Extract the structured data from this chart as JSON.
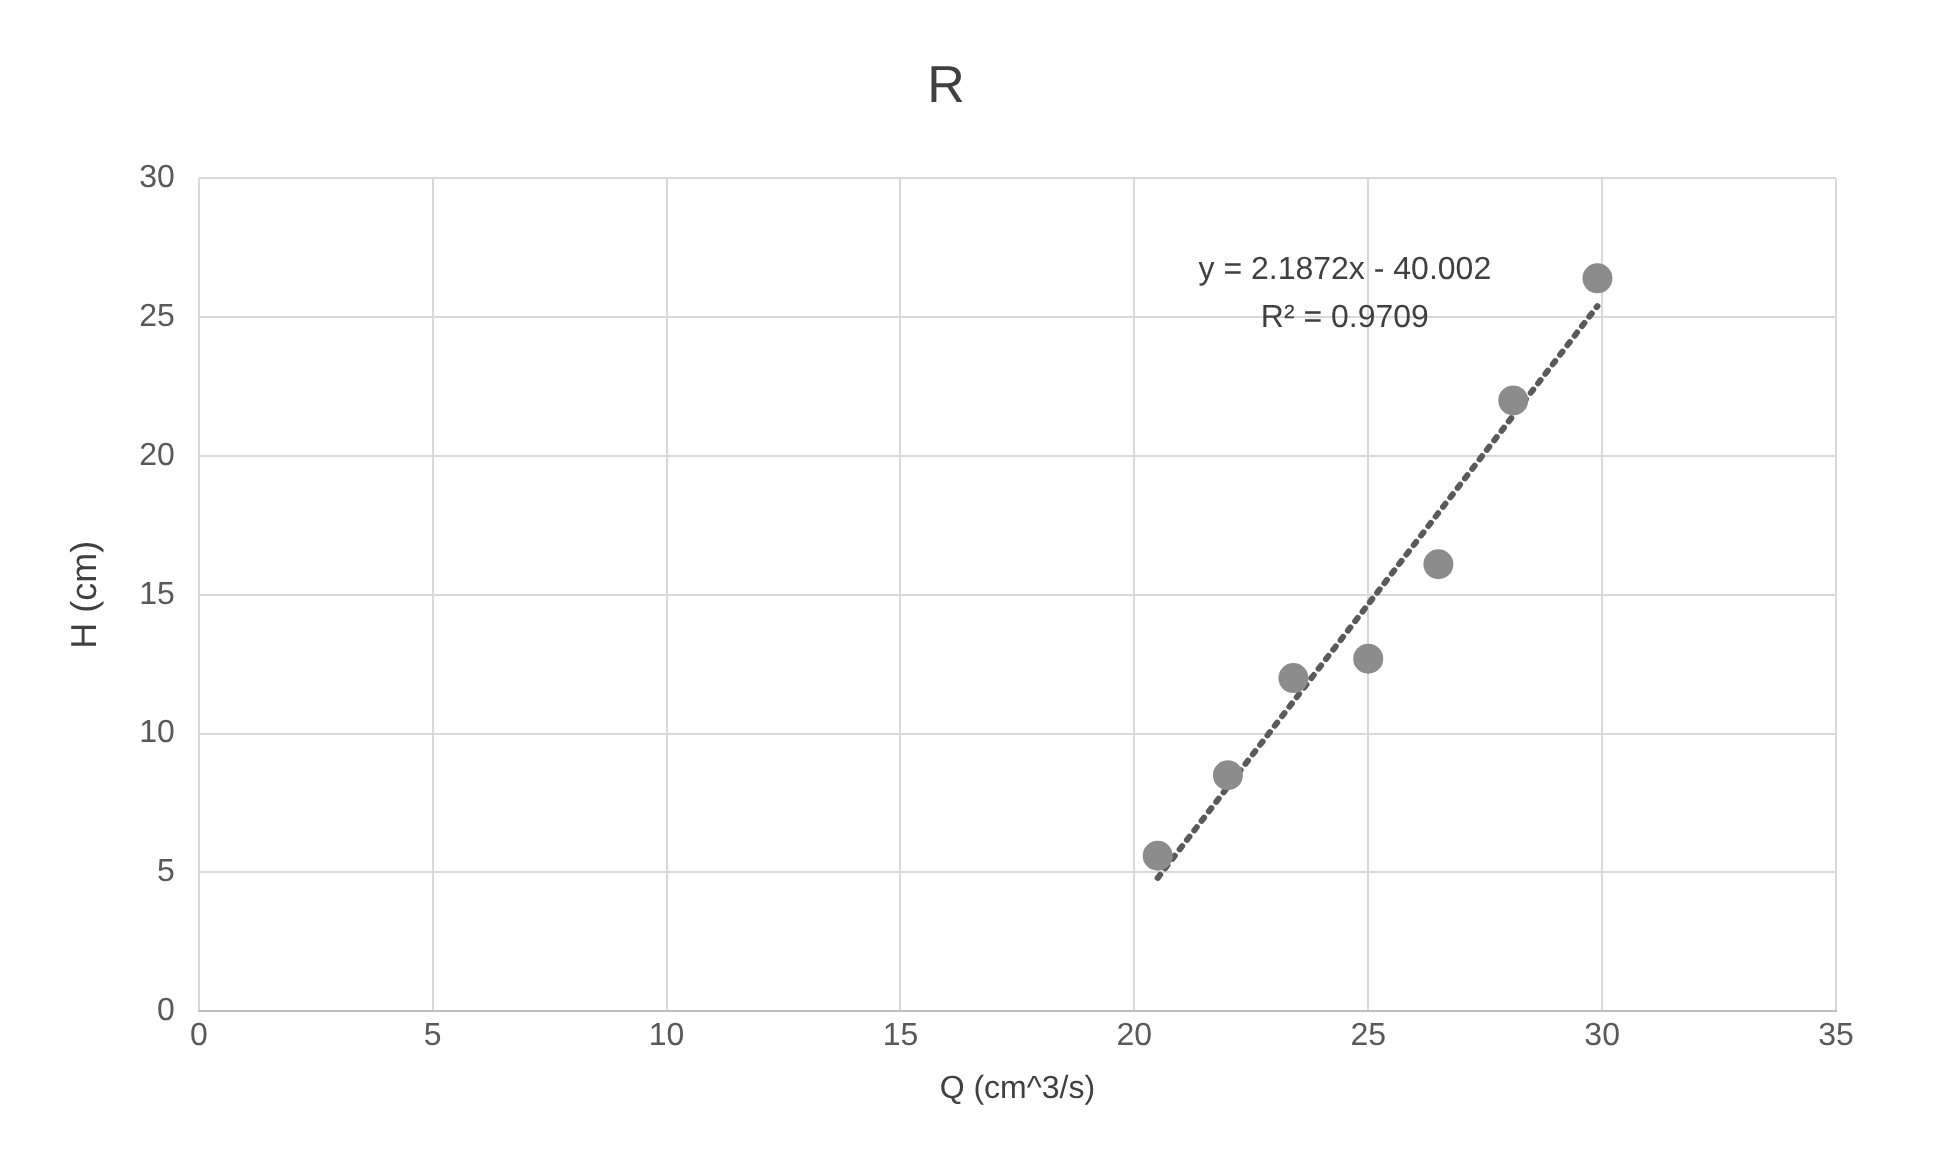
{
  "chart_data": {
    "type": "scatter",
    "title": "R",
    "xlabel": "Q (cm^3/s)",
    "ylabel": "H (cm)",
    "xlim": [
      0,
      35
    ],
    "xticks": [
      0,
      5,
      10,
      15,
      20,
      25,
      30,
      35
    ],
    "ylim": [
      0,
      30
    ],
    "yticks": [
      0,
      5,
      10,
      15,
      20,
      25,
      30
    ],
    "grid": true,
    "legend": false,
    "marker": "circle",
    "series": [
      {
        "color": "#8c8c8c",
        "x": [
          20.5,
          22.0,
          23.4,
          25.0,
          26.5,
          28.1,
          29.9
        ],
        "values": [
          5.6,
          8.5,
          12.0,
          12.7,
          16.1,
          22.0,
          26.4
        ]
      },
      {
        "type": "line",
        "color": "#5a5a5a",
        "line_style": "dotted",
        "marker": "none",
        "x": [
          20.5,
          29.9
        ],
        "values": [
          4.8,
          25.4
        ]
      }
    ],
    "annotations": [
      "y = 2.1872x - 40.002",
      "R² = 0.9709"
    ]
  }
}
